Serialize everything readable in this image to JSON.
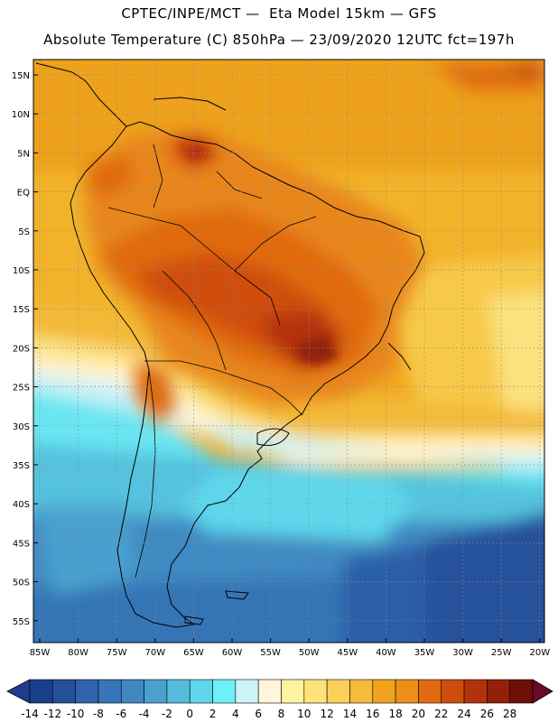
{
  "header": {
    "line1": "CPTEC/INPE/MCT —  Eta Model 15km — GFS",
    "line2": "Absolute Temperature (C) 850hPa — 23/09/2020 12UTC fct=197h"
  },
  "map": {
    "lat_labels": [
      "15N",
      "10N",
      "5N",
      "EQ",
      "5S",
      "10S",
      "15S",
      "20S",
      "25S",
      "30S",
      "35S",
      "40S",
      "45S",
      "50S",
      "55S"
    ],
    "lon_labels": [
      "85W",
      "80W",
      "75W",
      "70W",
      "65W",
      "60W",
      "55W",
      "50W",
      "45W",
      "40W",
      "35W",
      "30W",
      "25W",
      "20W"
    ],
    "lat_range": [
      -58,
      16
    ],
    "lon_range": [
      -86,
      -19
    ],
    "grid": true
  },
  "colorbar": {
    "labels": [
      "-14",
      "-12",
      "-10",
      "-8",
      "-6",
      "-4",
      "-2",
      "0",
      "2",
      "4",
      "6",
      "8",
      "10",
      "12",
      "14",
      "16",
      "18",
      "20",
      "22",
      "24",
      "26",
      "28"
    ],
    "colors": [
      "#1a3f8a",
      "#25519b",
      "#2f63ad",
      "#3775b9",
      "#3f88c2",
      "#4aa0cf",
      "#55bcdd",
      "#5fd6ea",
      "#6ff0f5",
      "#cdf2f7",
      "#fff5dc",
      "#fff3a0",
      "#fde37a",
      "#fbd05a",
      "#f5bb3b",
      "#f0a31e",
      "#eb8f18",
      "#e06a0f",
      "#cf4d0b",
      "#b4320a",
      "#932008",
      "#6e1005"
    ],
    "under_color": "#203c8c",
    "over_color": "#6a0a26"
  }
}
